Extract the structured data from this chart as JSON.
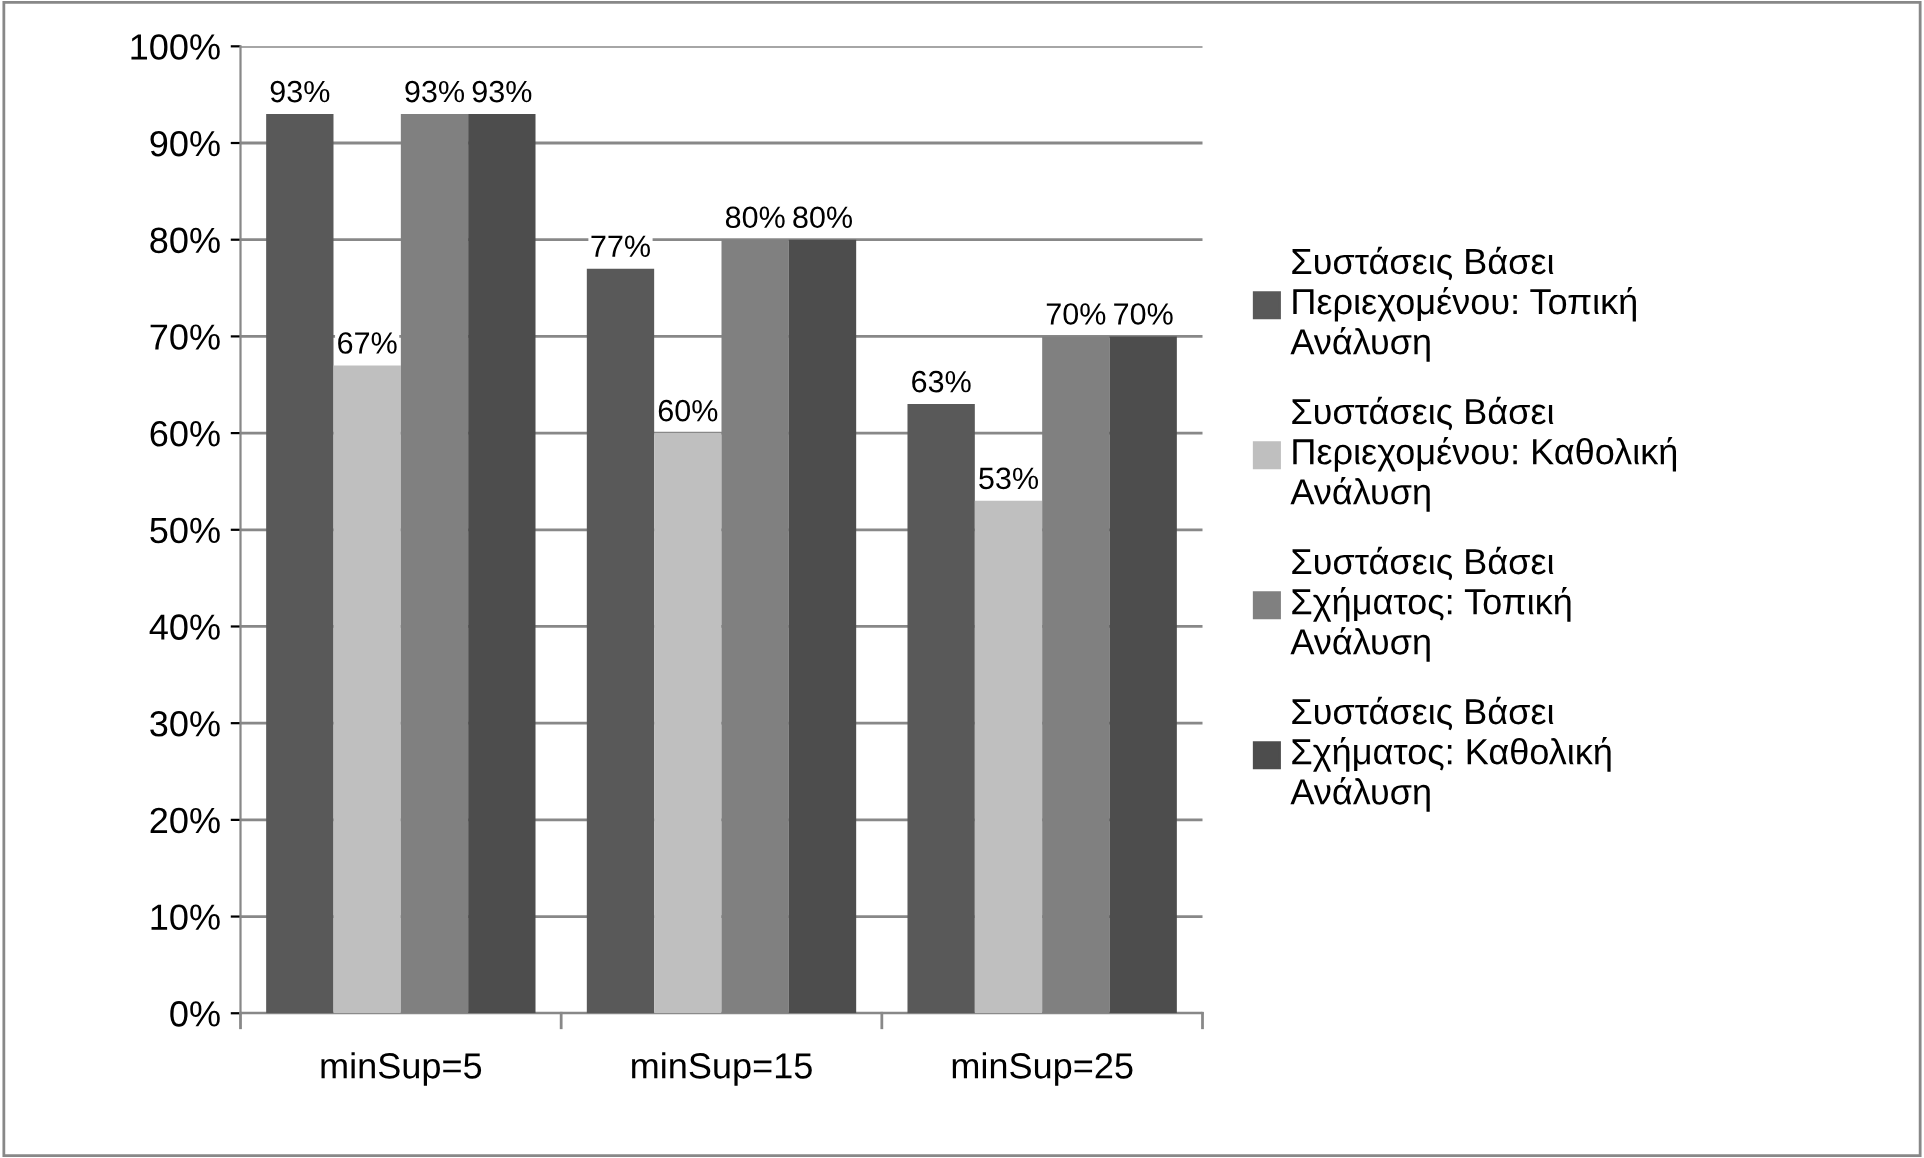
{
  "chart_data": {
    "type": "bar",
    "categories": [
      "minSup=5",
      "minSup=15",
      "minSup=25"
    ],
    "series": [
      {
        "name": "Συστάσεις Βάσει\nΠεριεχομένου: Τοπική\nΑνάλυση",
        "color": "#595959",
        "values": [
          93,
          77,
          63
        ],
        "value_labels": [
          "93%",
          "77%",
          "63%"
        ]
      },
      {
        "name": "Συστάσεις Βάσει\nΠεριεχομένου: Καθολική\nΑνάλυση",
        "color": "#bfbfbf",
        "values": [
          67,
          60,
          53
        ],
        "value_labels": [
          "67%",
          "60%",
          "53%"
        ]
      },
      {
        "name": "Συστάσεις Βάσει\nΣχήματος: Τοπική\nΑνάλυση",
        "color": "#808080",
        "values": [
          93,
          80,
          70
        ],
        "value_labels": [
          "93%",
          "80%",
          "70%"
        ]
      },
      {
        "name": "Συστάσεις Βάσει\nΣχήματος: Καθολική\nΑνάλυση",
        "color": "#4d4d4d",
        "values": [
          93,
          80,
          70
        ],
        "value_labels": [
          "93%",
          "80%",
          "70%"
        ]
      }
    ],
    "ylim": [
      0,
      100
    ],
    "yticks": [
      {
        "value": 0,
        "label": "0%"
      },
      {
        "value": 10,
        "label": "10%"
      },
      {
        "value": 20,
        "label": "20%"
      },
      {
        "value": 30,
        "label": "30%"
      },
      {
        "value": 40,
        "label": "40%"
      },
      {
        "value": 50,
        "label": "50%"
      },
      {
        "value": 60,
        "label": "60%"
      },
      {
        "value": 70,
        "label": "70%"
      },
      {
        "value": 80,
        "label": "80%"
      },
      {
        "value": 90,
        "label": "90%"
      },
      {
        "value": 100,
        "label": "100%"
      }
    ],
    "grid": "y",
    "legend": "right"
  }
}
